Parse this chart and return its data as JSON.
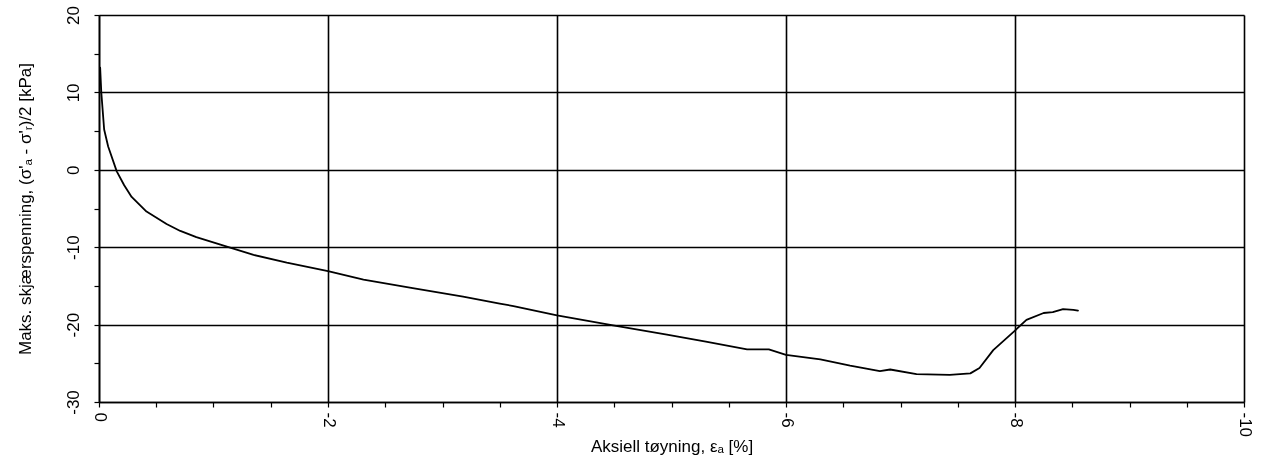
{
  "chart_data": {
    "type": "line",
    "xlabel": "Aksiell tøyning, εₐ [%]",
    "ylabel": "Maks. skjærspenning, (σ'ₐ - σ'ᵣ)/2  [kPa]",
    "x": [
      -0.01,
      -0.02,
      -0.045,
      -0.08,
      -0.155,
      -0.22,
      -0.285,
      -0.415,
      -0.59,
      -0.71,
      -0.85,
      -1.11,
      -1.35,
      -1.64,
      -2.0,
      -2.31,
      -2.74,
      -3.18,
      -3.5,
      -3.62,
      -4.0,
      -4.49,
      -4.96,
      -5.3,
      -5.66,
      -5.85,
      -6.0,
      -6.3,
      -6.56,
      -6.82,
      -6.91,
      -7.14,
      -7.43,
      -7.61,
      -7.69,
      -7.81,
      -7.99,
      -8.1,
      -8.25,
      -8.33,
      -8.42,
      -8.51,
      -8.55
    ],
    "values": [
      13.2,
      10.0,
      5.2,
      3.0,
      -0.2,
      -2.0,
      -3.5,
      -5.4,
      -7.0,
      -7.9,
      -8.7,
      -9.9,
      -11.0,
      -12.0,
      -13.1,
      -14.2,
      -15.3,
      -16.4,
      -17.3,
      -17.6,
      -18.8,
      -20.1,
      -21.3,
      -22.2,
      -23.2,
      -23.2,
      -23.9,
      -24.5,
      -25.3,
      -26.0,
      -25.8,
      -26.4,
      -26.5,
      -26.3,
      -25.6,
      -23.3,
      -20.9,
      -19.4,
      -18.5,
      -18.4,
      -18.0,
      -18.1,
      -18.2
    ],
    "color": "#000000",
    "line_style": "solid",
    "xlim": [
      0,
      -10
    ],
    "xticks": [
      0,
      {
        "value": -0.5,
        "label": null
      },
      {
        "value": -1,
        "label": null
      },
      {
        "value": -1.5,
        "label": null
      },
      -2,
      {
        "value": -2.5,
        "label": null
      },
      {
        "value": -3,
        "label": null
      },
      {
        "value": -3.5,
        "label": null
      },
      -4,
      {
        "value": -4.5,
        "label": null
      },
      {
        "value": -5,
        "label": null
      },
      {
        "value": -5.5,
        "label": null
      },
      -6,
      {
        "value": -6.5,
        "label": null
      },
      {
        "value": -7,
        "label": null
      },
      {
        "value": -7.5,
        "label": null
      },
      -8,
      {
        "value": -8.5,
        "label": null
      },
      {
        "value": -9,
        "label": null
      },
      {
        "value": -9.5,
        "label": null
      },
      -10
    ],
    "ylim": [
      -30,
      20
    ],
    "yticks": [
      -30,
      {
        "value": -25,
        "label": null
      },
      -20,
      {
        "value": -15,
        "label": null
      },
      -10,
      {
        "value": -5,
        "label": null
      },
      0,
      {
        "value": 5,
        "label": null
      },
      10,
      {
        "value": 15,
        "label": null
      },
      20
    ],
    "grid": true
  }
}
